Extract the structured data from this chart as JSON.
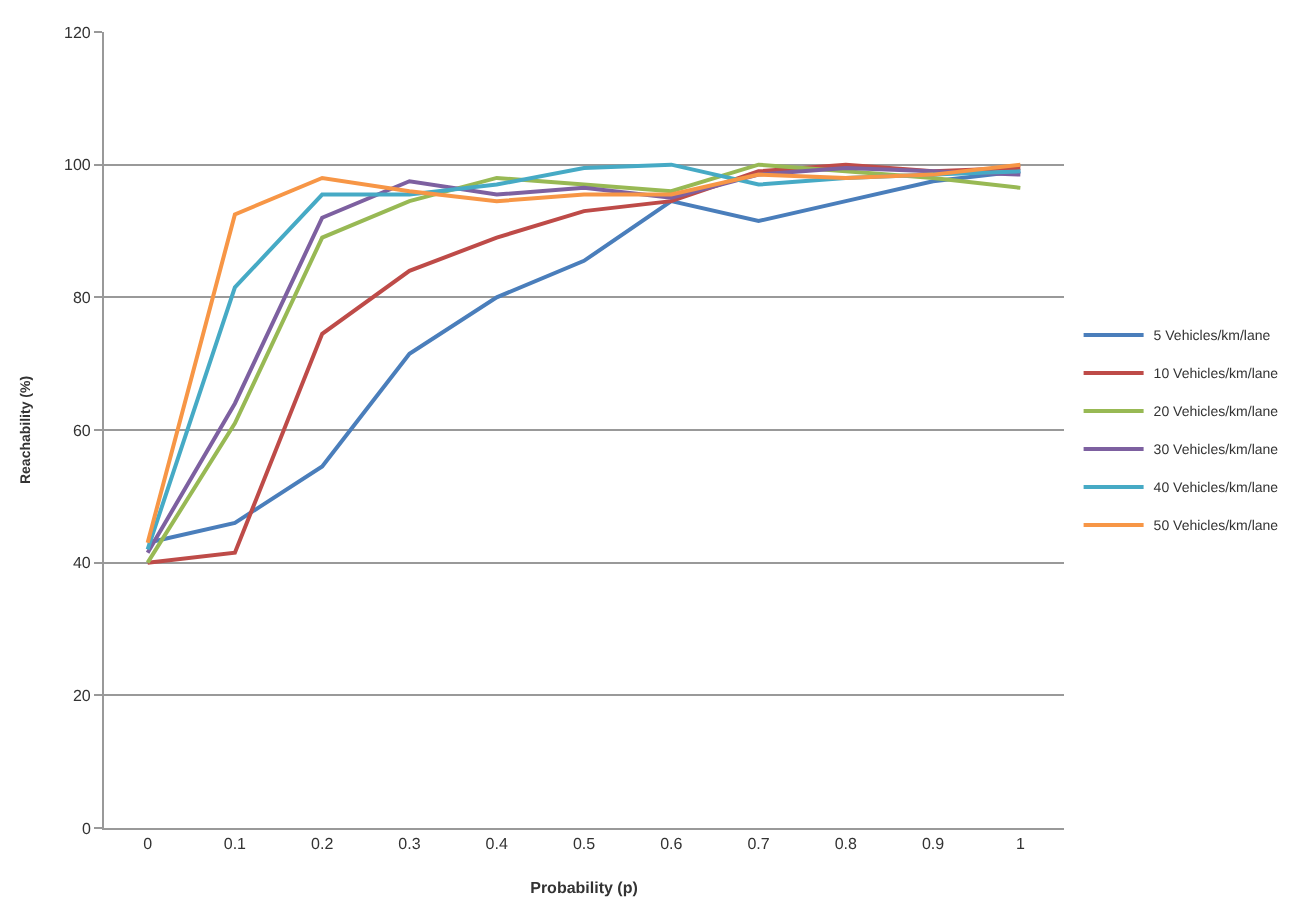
{
  "chart_data": {
    "type": "line",
    "xlabel": "Probability (p)",
    "ylabel": "Reachability (%)",
    "categories": [
      "0",
      "0.1",
      "0.2",
      "0.3",
      "0.4",
      "0.5",
      "0.6",
      "0.7",
      "0.8",
      "0.9",
      "1"
    ],
    "ylim": [
      0,
      120
    ],
    "yticks": [
      0,
      20,
      40,
      60,
      80,
      100,
      120
    ],
    "grid": "y",
    "legend": "right",
    "marker": "none",
    "line_style": "solid",
    "series": [
      {
        "name": "5 Vehicles/km/lane",
        "color": "#4a7ebb",
        "values": [
          43,
          46,
          54.5,
          71.5,
          80,
          85.5,
          94.5,
          91.5,
          94.5,
          97.5,
          99
        ]
      },
      {
        "name": "10 Vehicles/km/lane",
        "color": "#be4b48",
        "values": [
          40,
          41.5,
          74.5,
          84,
          89,
          93,
          94.5,
          99,
          100,
          99,
          99.5
        ]
      },
      {
        "name": "20 Vehicles/km/lane",
        "color": "#98b954",
        "values": [
          40,
          61,
          89,
          94.5,
          98,
          97,
          96,
          100,
          99,
          98,
          96.5
        ]
      },
      {
        "name": "30 Vehicles/km/lane",
        "color": "#7d60a0",
        "values": [
          41.5,
          64,
          92,
          97.5,
          95.5,
          96.5,
          95,
          98.5,
          99.5,
          99,
          98.5
        ]
      },
      {
        "name": "40 Vehicles/km/lane",
        "color": "#46aac5",
        "values": [
          42,
          81.5,
          95.5,
          95.5,
          97,
          99.5,
          100,
          97,
          98,
          98.5,
          99
        ]
      },
      {
        "name": "50 Vehicles/km/lane",
        "color": "#f79646",
        "values": [
          43,
          92.5,
          98,
          96,
          94.5,
          95.5,
          95.5,
          98.5,
          98,
          98.5,
          100
        ]
      }
    ]
  }
}
